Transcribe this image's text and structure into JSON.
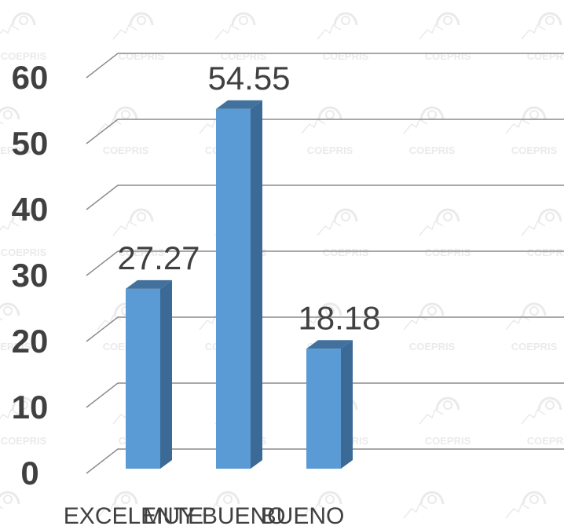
{
  "chart_data": {
    "type": "bar",
    "subtype": "3d-column",
    "categories": [
      "EXCELENTE",
      "MUY BUENO",
      "BUENO"
    ],
    "values": [
      27.27,
      54.55,
      18.18
    ],
    "data_labels": [
      "27.27",
      "54.55",
      "18.18"
    ],
    "title": "",
    "xlabel": "",
    "ylabel": "",
    "ylim": [
      0,
      60
    ],
    "yticks": [
      0,
      10,
      20,
      30,
      40,
      50,
      60
    ],
    "ytick_labels": [
      "0",
      "10",
      "20",
      "30",
      "40",
      "50",
      "60"
    ],
    "grid": true,
    "legend": "none",
    "colors": {
      "bar_front": "#5b9bd5",
      "bar_side": "#3c6a97",
      "bar_top": "#41719c",
      "grid": "#8c8c8c",
      "text": "#404040",
      "watermark": "#d9d9d9"
    },
    "watermark_text": "COEPRIS"
  }
}
